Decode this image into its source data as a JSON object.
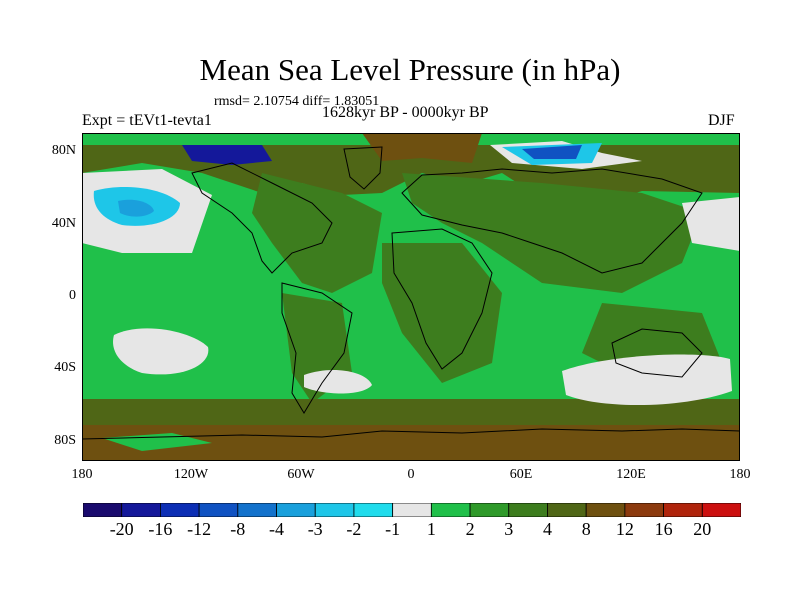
{
  "title": "Mean Sea Level Pressure (in hPa)",
  "stats": "rmsd= 2.10754  diff= 1.83051",
  "experiment": "Expt = tEVt1-tevta1",
  "period": "1628kyr BP - 0000kyr BP",
  "season": "DJF",
  "lat_labels": [
    "80N",
    "40N",
    "0",
    "40S",
    "80S"
  ],
  "lon_labels": [
    "180",
    "120W",
    "60W",
    "0",
    "60E",
    "120E",
    "180"
  ],
  "colorbar": {
    "labels": [
      "-20",
      "-16",
      "-12",
      "-8",
      "-4",
      "-3",
      "-2",
      "-1",
      "1",
      "2",
      "3",
      "4",
      "8",
      "12",
      "16",
      "20"
    ],
    "colors": [
      "#1a0a6e",
      "#14189a",
      "#0d2fb5",
      "#1052c2",
      "#1372cc",
      "#1aa0dc",
      "#1ec6e8",
      "#20dcec",
      "#e6e6e6",
      "#20c04a",
      "#2f9a2a",
      "#3d7d1e",
      "#4f6616",
      "#6e5010",
      "#8c3a0e",
      "#b0240c",
      "#cc1010"
    ]
  },
  "map_colors": {
    "green": "#20c04a",
    "dark_green": "#3d7d1e",
    "olive": "#4f6616",
    "brown": "#6e5010",
    "grey": "#e6e6e6",
    "cyan": "#1ec6e8",
    "blue": "#1372cc",
    "navy": "#14189a"
  }
}
